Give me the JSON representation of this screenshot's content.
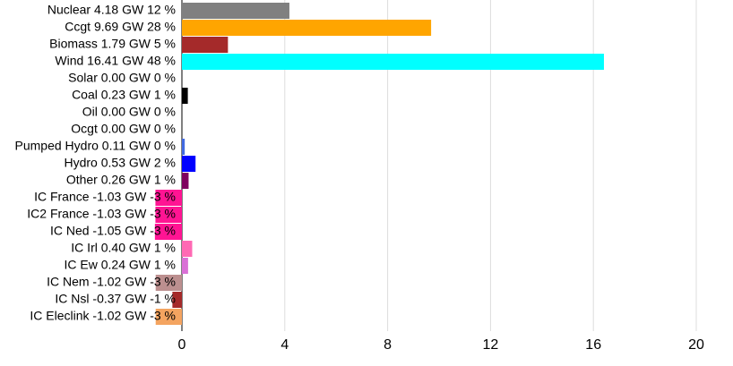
{
  "chart_data": {
    "type": "hbar",
    "categories": [
      "Nuclear 4.18 GW 12 %",
      "Ccgt 9.69 GW 28 %",
      "Biomass 1.79 GW 5 %",
      "Wind 16.41 GW 48 %",
      "Solar 0.00 GW 0 %",
      "Coal 0.23 GW 1 %",
      "Oil 0.00 GW 0 %",
      "Ocgt 0.00 GW 0 %",
      "Pumped Hydro 0.11 GW 0 %",
      "Hydro 0.53 GW 2 %",
      "Other 0.26 GW 1 %",
      "IC France -1.03 GW -3 %",
      "IC2 France -1.03 GW -3 %",
      "IC Ned -1.05 GW -3 %",
      "IC Irl 0.40 GW 1 %",
      "IC Ew 0.24 GW 1 %",
      "IC Nem -1.02 GW -3 %",
      "IC Nsl -0.37 GW -1 %",
      "IC Eleclink -1.02 GW -3 %"
    ],
    "values": [
      4.18,
      9.69,
      1.79,
      16.41,
      0,
      0.23,
      0,
      0,
      0.11,
      0.53,
      0.26,
      -1.03,
      -1.03,
      -1.05,
      0.4,
      0.24,
      -1.02,
      -0.37,
      -1.02
    ],
    "colors": [
      "#808080",
      "#ffa500",
      "#a52a2a",
      "#00ffff",
      "#ffff00",
      "#000000",
      "#444444",
      "#666666",
      "#4169e1",
      "#0000ff",
      "#800060",
      "#ff1493",
      "#ff1493",
      "#ff1493",
      "#ff69b4",
      "#da70d6",
      "#bc8f8f",
      "#a52a2a",
      "#f4a460"
    ],
    "xlim": [
      0,
      20
    ],
    "xticks": [
      0,
      4,
      8,
      12,
      16,
      20
    ],
    "grid": true
  }
}
